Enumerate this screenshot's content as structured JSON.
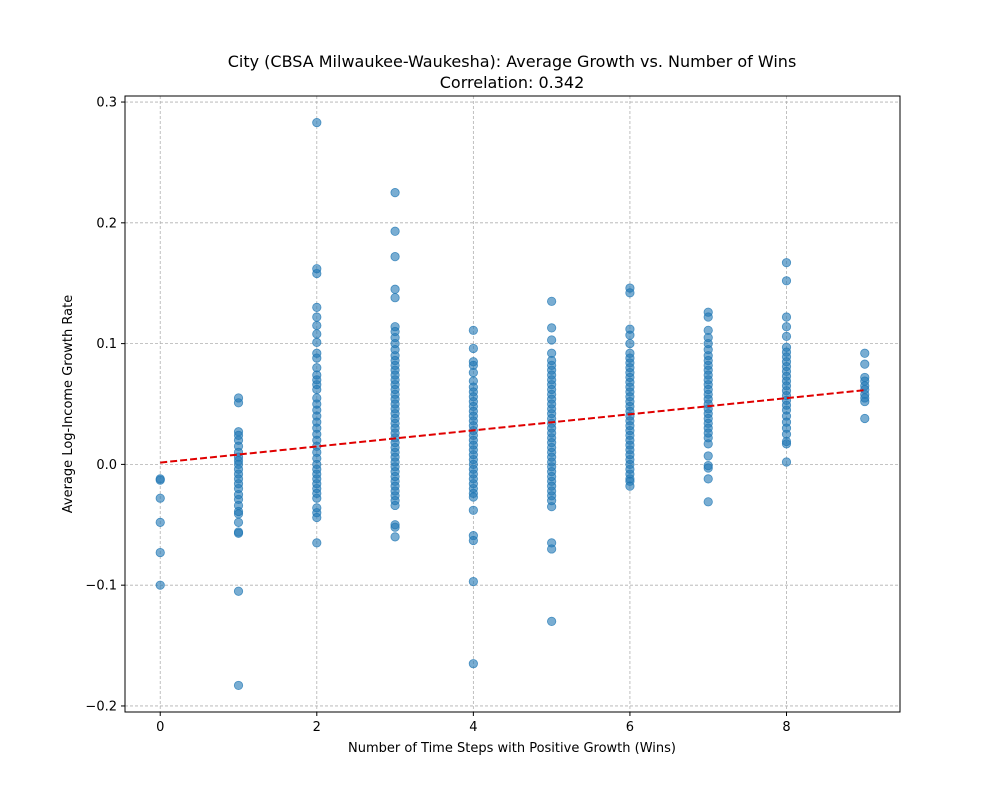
{
  "chart_data": {
    "type": "scatter",
    "title": "City (CBSA Milwaukee-Waukesha): Average Growth vs. Number of Wins",
    "subtitle": "Correlation: 0.342",
    "xlabel": "Number of Time Steps with Positive Growth (Wins)",
    "ylabel": "Average Log-Income Growth Rate",
    "xlim": [
      -0.45,
      9.45
    ],
    "ylim": [
      -0.205,
      0.305
    ],
    "xticks": [
      0,
      2,
      4,
      6,
      8
    ],
    "yticks": [
      -0.2,
      -0.1,
      0.0,
      0.1,
      0.2,
      0.3
    ],
    "ytick_labels": [
      "−0.2",
      "−0.1",
      "0.0",
      "0.1",
      "0.2",
      "0.3"
    ],
    "grid": true,
    "point_color": "#1f77b4",
    "point_alpha": 0.6,
    "trend_color": "#e00000",
    "trendline": {
      "x": [
        0,
        9
      ],
      "y": [
        0.0015,
        0.0615
      ]
    },
    "points_by_wins": [
      {
        "x": 0,
        "y": [
          -0.012,
          -0.013,
          -0.028,
          -0.048,
          -0.073,
          -0.1
        ]
      },
      {
        "x": 1,
        "y": [
          0.055,
          0.051,
          0.027,
          0.024,
          0.02,
          0.015,
          0.01,
          0.006,
          0.003,
          0.0,
          -0.004,
          -0.008,
          -0.012,
          -0.016,
          -0.02,
          -0.025,
          -0.029,
          -0.034,
          -0.039,
          -0.041,
          -0.048,
          -0.056,
          -0.057,
          -0.105,
          -0.183
        ]
      },
      {
        "x": 2,
        "y": [
          0.283,
          0.162,
          0.158,
          0.13,
          0.122,
          0.115,
          0.108,
          0.101,
          0.092,
          0.088,
          0.08,
          0.074,
          0.07,
          0.066,
          0.062,
          0.055,
          0.05,
          0.045,
          0.04,
          0.035,
          0.03,
          0.025,
          0.02,
          0.015,
          0.01,
          0.005,
          0.0,
          -0.004,
          -0.008,
          -0.012,
          -0.016,
          -0.02,
          -0.024,
          -0.028,
          -0.036,
          -0.04,
          -0.044,
          -0.065
        ]
      },
      {
        "x": 3,
        "y": [
          0.225,
          0.193,
          0.172,
          0.145,
          0.138,
          0.114,
          0.11,
          0.105,
          0.1,
          0.095,
          0.09,
          0.086,
          0.082,
          0.078,
          0.074,
          0.07,
          0.066,
          0.062,
          0.058,
          0.054,
          0.05,
          0.046,
          0.042,
          0.038,
          0.034,
          0.03,
          0.026,
          0.022,
          0.018,
          0.014,
          0.01,
          0.006,
          0.002,
          -0.002,
          -0.006,
          -0.01,
          -0.014,
          -0.018,
          -0.022,
          -0.026,
          -0.03,
          -0.034,
          -0.05,
          -0.052,
          -0.06
        ]
      },
      {
        "x": 4,
        "y": [
          0.111,
          0.096,
          0.085,
          0.082,
          0.076,
          0.069,
          0.064,
          0.06,
          0.056,
          0.052,
          0.048,
          0.044,
          0.04,
          0.036,
          0.032,
          0.028,
          0.024,
          0.02,
          0.016,
          0.012,
          0.008,
          0.004,
          0.0,
          -0.004,
          -0.008,
          -0.012,
          -0.016,
          -0.02,
          -0.024,
          -0.027,
          -0.038,
          -0.059,
          -0.063,
          -0.097,
          -0.165
        ]
      },
      {
        "x": 5,
        "y": [
          0.135,
          0.113,
          0.103,
          0.092,
          0.086,
          0.082,
          0.078,
          0.074,
          0.07,
          0.066,
          0.062,
          0.058,
          0.054,
          0.05,
          0.046,
          0.042,
          0.038,
          0.034,
          0.03,
          0.026,
          0.022,
          0.018,
          0.014,
          0.01,
          0.006,
          0.002,
          -0.002,
          -0.006,
          -0.01,
          -0.014,
          -0.018,
          -0.022,
          -0.026,
          -0.03,
          -0.035,
          -0.065,
          -0.07,
          -0.13
        ]
      },
      {
        "x": 6,
        "y": [
          0.146,
          0.142,
          0.112,
          0.107,
          0.1,
          0.092,
          0.088,
          0.084,
          0.08,
          0.076,
          0.072,
          0.068,
          0.064,
          0.06,
          0.056,
          0.052,
          0.048,
          0.044,
          0.04,
          0.036,
          0.032,
          0.028,
          0.024,
          0.02,
          0.016,
          0.012,
          0.008,
          0.004,
          0.0,
          -0.004,
          -0.008,
          -0.012,
          -0.014,
          -0.018
        ]
      },
      {
        "x": 7,
        "y": [
          0.126,
          0.122,
          0.111,
          0.105,
          0.1,
          0.095,
          0.09,
          0.086,
          0.082,
          0.078,
          0.074,
          0.07,
          0.066,
          0.062,
          0.058,
          0.054,
          0.05,
          0.046,
          0.042,
          0.038,
          0.034,
          0.03,
          0.026,
          0.022,
          0.017,
          0.007,
          -0.001,
          -0.003,
          -0.012,
          -0.031
        ]
      },
      {
        "x": 8,
        "y": [
          0.167,
          0.152,
          0.122,
          0.114,
          0.106,
          0.097,
          0.093,
          0.089,
          0.085,
          0.081,
          0.077,
          0.073,
          0.069,
          0.065,
          0.061,
          0.057,
          0.053,
          0.049,
          0.045,
          0.04,
          0.035,
          0.03,
          0.025,
          0.019,
          0.017,
          0.002
        ]
      },
      {
        "x": 9,
        "y": [
          0.092,
          0.083,
          0.072,
          0.069,
          0.065,
          0.062,
          0.058,
          0.055,
          0.052,
          0.038
        ]
      }
    ]
  }
}
